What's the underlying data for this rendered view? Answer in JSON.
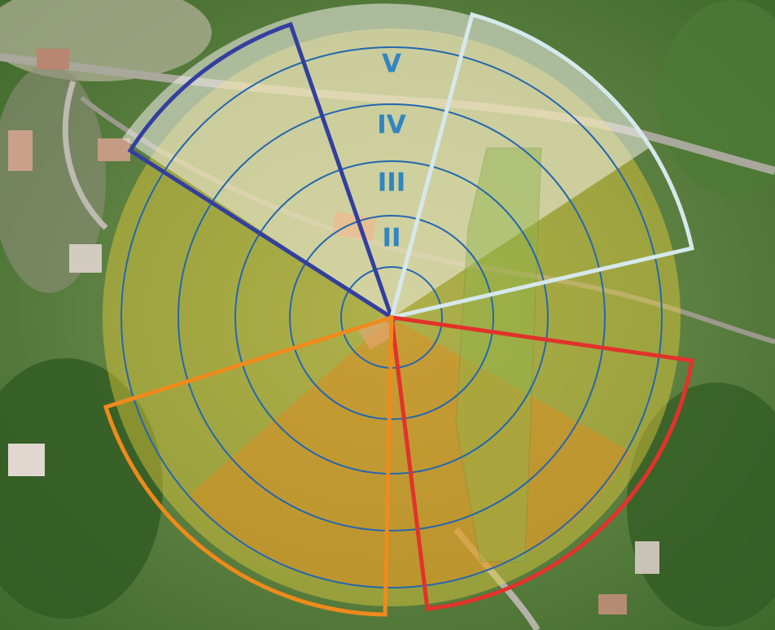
{
  "zones": {
    "labels": [
      "V",
      "IV",
      "III",
      "II"
    ]
  }
}
